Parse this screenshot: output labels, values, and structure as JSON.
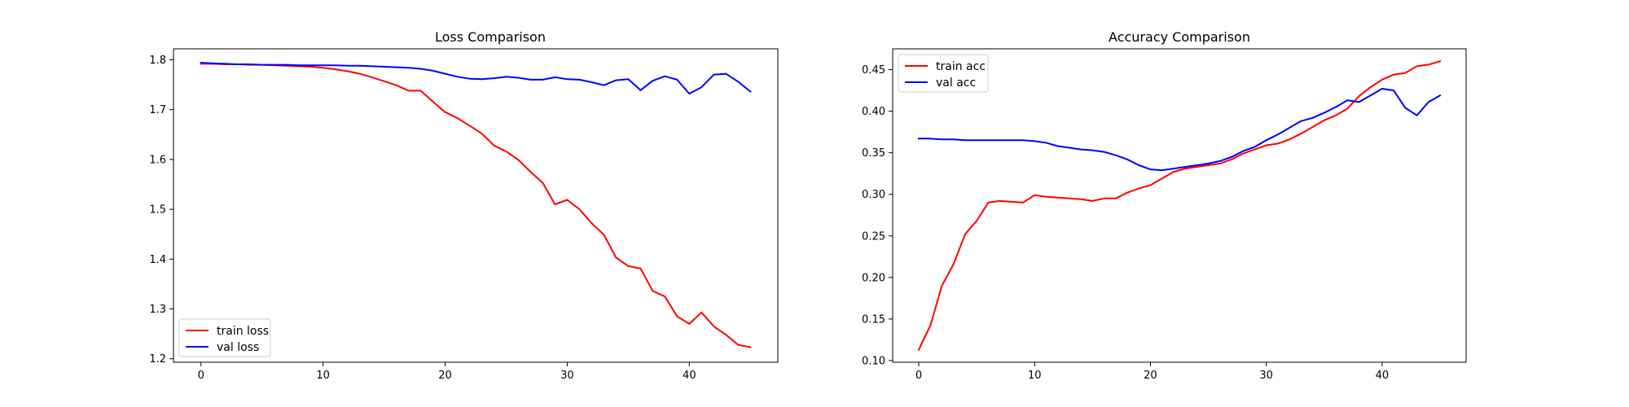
{
  "chart_data": [
    {
      "type": "line",
      "title": "Loss Comparison",
      "xlabel": "",
      "ylabel": "",
      "xlim": [
        -2.25,
        47.25
      ],
      "ylim": [
        1.193,
        1.822
      ],
      "xticks": [
        0,
        10,
        20,
        30,
        40
      ],
      "yticks": [
        1.2,
        1.3,
        1.4,
        1.5,
        1.6,
        1.7,
        1.8
      ],
      "ytick_decimals": 1,
      "grid": false,
      "legend": "lower-left",
      "x": [
        0,
        1,
        2,
        3,
        4,
        5,
        6,
        7,
        8,
        9,
        10,
        11,
        12,
        13,
        14,
        15,
        16,
        17,
        18,
        19,
        20,
        21,
        22,
        23,
        24,
        25,
        26,
        27,
        28,
        29,
        30,
        31,
        32,
        33,
        34,
        35,
        36,
        37,
        38,
        39,
        40,
        41,
        42,
        43,
        44,
        45
      ],
      "series": [
        {
          "name": "train loss",
          "color": "#ff0000",
          "values": [
            1.792,
            1.792,
            1.791,
            1.791,
            1.79,
            1.79,
            1.789,
            1.788,
            1.787,
            1.786,
            1.784,
            1.781,
            1.777,
            1.772,
            1.765,
            1.757,
            1.749,
            1.738,
            1.738,
            1.716,
            1.695,
            1.683,
            1.668,
            1.652,
            1.628,
            1.616,
            1.599,
            1.575,
            1.553,
            1.51,
            1.519,
            1.5,
            1.472,
            1.449,
            1.403,
            1.386,
            1.381,
            1.336,
            1.325,
            1.285,
            1.27,
            1.293,
            1.265,
            1.248,
            1.228,
            1.223
          ]
        },
        {
          "name": "val loss",
          "color": "#0000ff",
          "values": [
            1.794,
            1.793,
            1.792,
            1.791,
            1.791,
            1.79,
            1.79,
            1.79,
            1.789,
            1.789,
            1.789,
            1.789,
            1.788,
            1.788,
            1.787,
            1.786,
            1.785,
            1.784,
            1.782,
            1.778,
            1.772,
            1.766,
            1.762,
            1.761,
            1.763,
            1.766,
            1.764,
            1.76,
            1.76,
            1.765,
            1.761,
            1.76,
            1.755,
            1.749,
            1.759,
            1.761,
            1.739,
            1.758,
            1.767,
            1.76,
            1.732,
            1.745,
            1.77,
            1.772,
            1.756,
            1.736
          ]
        }
      ]
    },
    {
      "type": "line",
      "title": "Accuracy Comparison",
      "xlabel": "",
      "ylabel": "",
      "xlim": [
        -2.25,
        47.25
      ],
      "ylim": [
        0.098,
        0.475
      ],
      "xticks": [
        0,
        10,
        20,
        30,
        40
      ],
      "yticks": [
        0.1,
        0.15,
        0.2,
        0.25,
        0.3,
        0.35,
        0.4,
        0.45
      ],
      "ytick_decimals": 2,
      "grid": false,
      "legend": "top-left",
      "x": [
        0,
        1,
        2,
        3,
        4,
        5,
        6,
        7,
        8,
        9,
        10,
        11,
        12,
        13,
        14,
        15,
        16,
        17,
        18,
        19,
        20,
        21,
        22,
        23,
        24,
        25,
        26,
        27,
        28,
        29,
        30,
        31,
        32,
        33,
        34,
        35,
        36,
        37,
        38,
        39,
        40,
        41,
        42,
        43,
        44,
        45
      ],
      "series": [
        {
          "name": "train acc",
          "color": "#ff0000",
          "values": [
            0.113,
            0.142,
            0.19,
            0.216,
            0.252,
            0.268,
            0.29,
            0.292,
            0.291,
            0.29,
            0.299,
            0.297,
            0.296,
            0.295,
            0.294,
            0.292,
            0.295,
            0.295,
            0.302,
            0.307,
            0.311,
            0.319,
            0.327,
            0.331,
            0.333,
            0.335,
            0.337,
            0.342,
            0.349,
            0.354,
            0.359,
            0.361,
            0.366,
            0.373,
            0.381,
            0.389,
            0.395,
            0.403,
            0.418,
            0.429,
            0.438,
            0.444,
            0.446,
            0.454,
            0.456,
            0.46
          ]
        },
        {
          "name": "val acc",
          "color": "#0000ff",
          "values": [
            0.367,
            0.367,
            0.366,
            0.366,
            0.365,
            0.365,
            0.365,
            0.365,
            0.365,
            0.365,
            0.364,
            0.362,
            0.358,
            0.356,
            0.354,
            0.353,
            0.351,
            0.347,
            0.342,
            0.335,
            0.33,
            0.329,
            0.331,
            0.333,
            0.335,
            0.337,
            0.34,
            0.345,
            0.352,
            0.357,
            0.365,
            0.372,
            0.38,
            0.388,
            0.392,
            0.398,
            0.405,
            0.413,
            0.411,
            0.419,
            0.427,
            0.425,
            0.404,
            0.395,
            0.411,
            0.419
          ]
        }
      ]
    }
  ]
}
